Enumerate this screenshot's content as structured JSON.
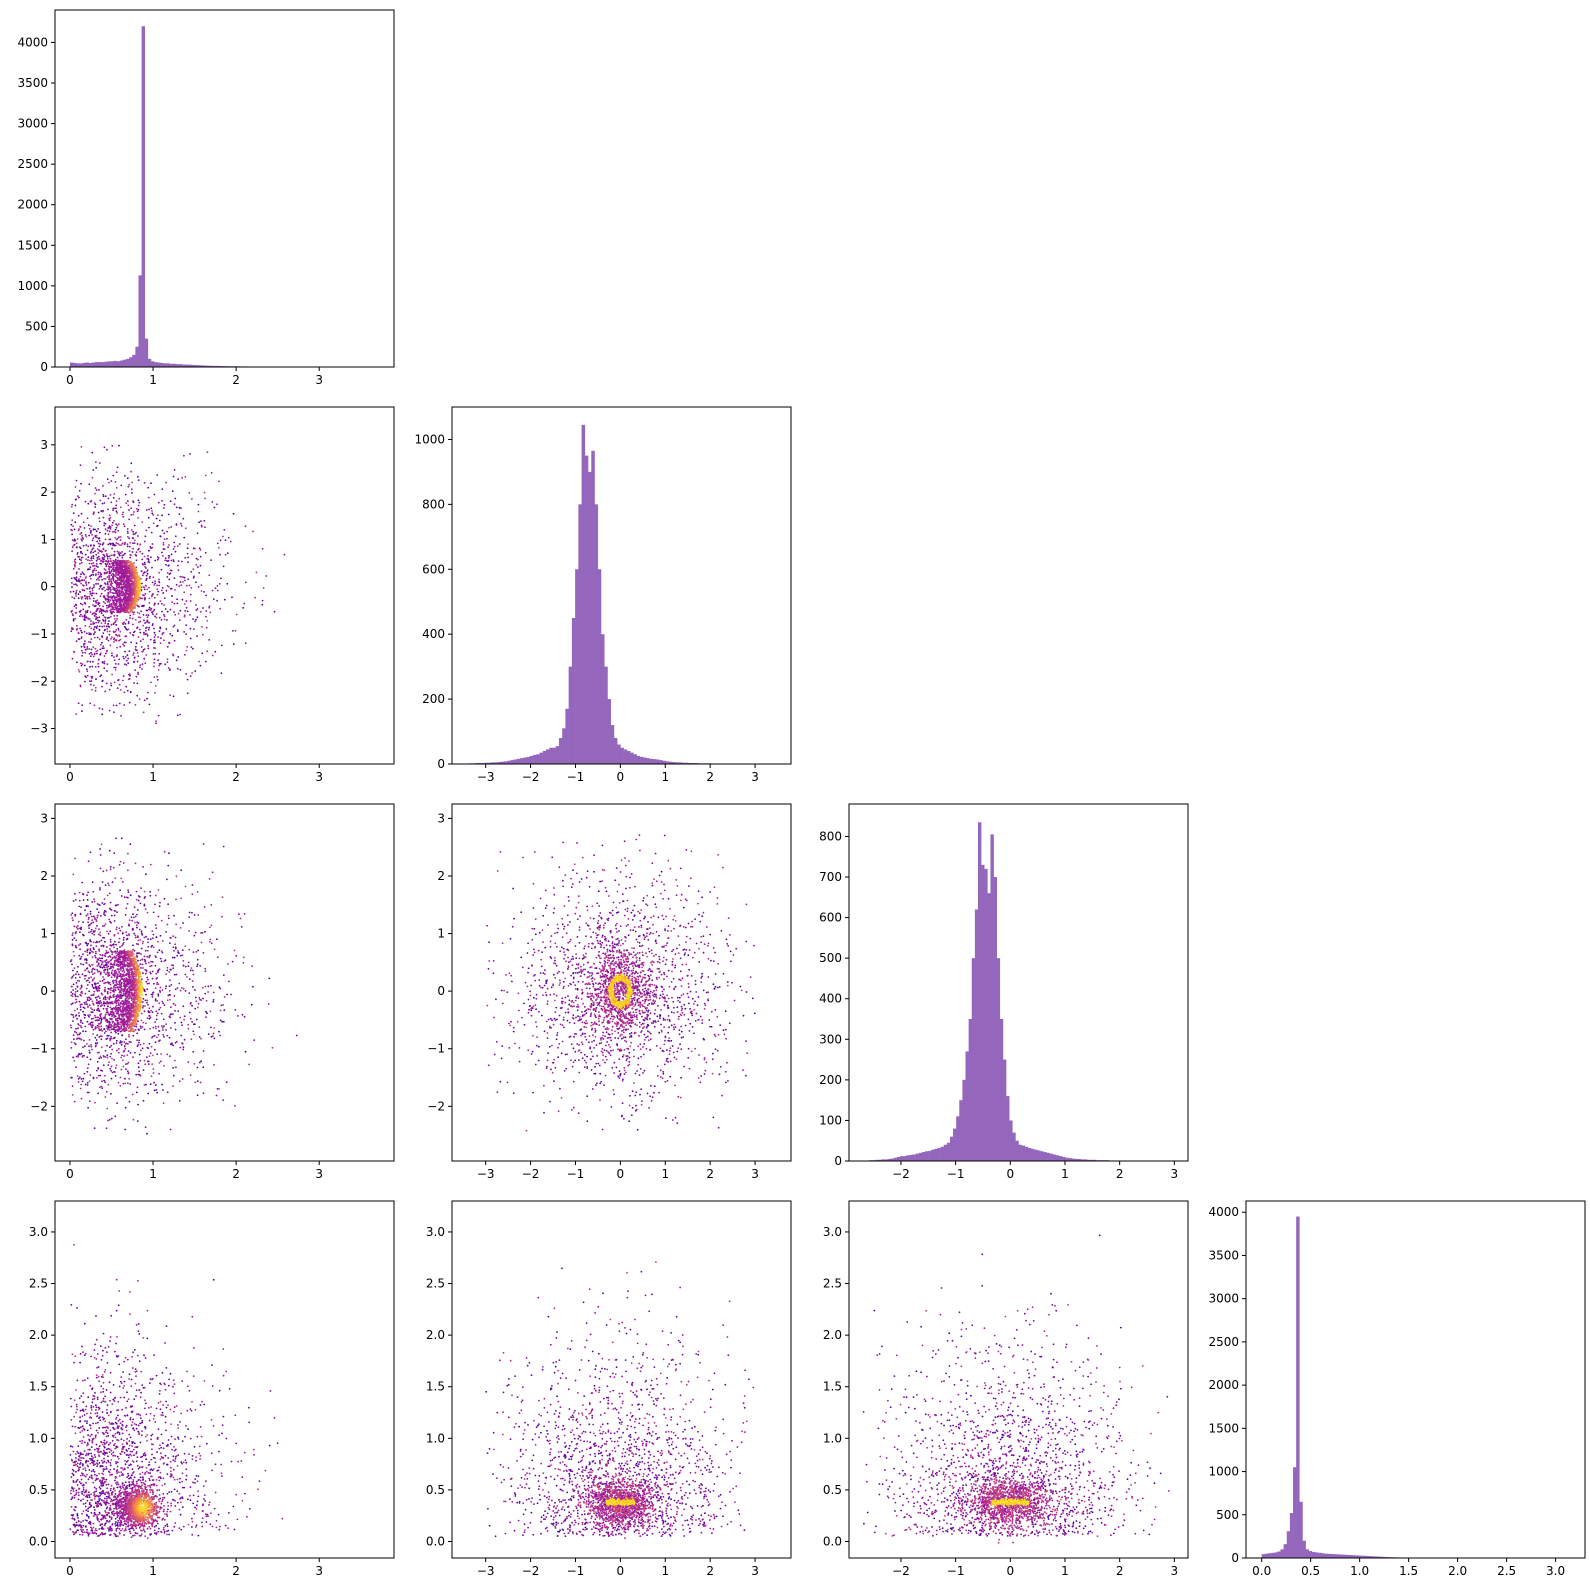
{
  "chart_data": {
    "type": "corner-plot",
    "layout": "4x4 lower-triangular pair plot: histograms on diagonal, density-colored scatter below",
    "hist_color": "#9467bd",
    "scatter_colormap": "plasma",
    "variables": [
      {
        "index": 0,
        "lim": [
          -0.18,
          3.9
        ],
        "ticks": [
          0,
          1,
          2,
          3
        ],
        "tick_labels": [
          "0",
          "1",
          "2",
          "3"
        ]
      },
      {
        "index": 1,
        "lim": [
          -3.75,
          3.8
        ],
        "ticks": [
          -3,
          -2,
          -1,
          0,
          1,
          2,
          3
        ],
        "tick_labels": [
          "−3",
          "−2",
          "−1",
          "0",
          "1",
          "2",
          "3"
        ]
      },
      {
        "index": 2,
        "lim": [
          -2.95,
          3.25
        ],
        "ticks": [
          -2,
          -1,
          0,
          1,
          2,
          3
        ],
        "tick_labels": [
          "−2",
          "−1",
          "0",
          "1",
          "2",
          "3"
        ]
      },
      {
        "index": 3,
        "lim": [
          -0.16,
          3.3
        ],
        "ticks": [
          0.0,
          0.5,
          1.0,
          1.5,
          2.0,
          2.5,
          3.0
        ],
        "tick_labels": [
          "0.0",
          "0.5",
          "1.0",
          "1.5",
          "2.0",
          "2.5",
          "3.0"
        ]
      }
    ],
    "hist_axes": [
      {
        "var": 0,
        "ylim": [
          0,
          4400
        ],
        "yticks": [
          0,
          500,
          1000,
          1500,
          2000,
          2500,
          3000,
          3500,
          4000
        ],
        "ytick_labels": [
          "0",
          "500",
          "1000",
          "1500",
          "2000",
          "2500",
          "3000",
          "3500",
          "4000"
        ]
      },
      {
        "var": 1,
        "ylim": [
          0,
          1100
        ],
        "yticks": [
          0,
          200,
          400,
          600,
          800,
          1000
        ],
        "ytick_labels": [
          "0",
          "200",
          "400",
          "600",
          "800",
          "1000"
        ]
      },
      {
        "var": 2,
        "ylim": [
          0,
          880
        ],
        "yticks": [
          0,
          100,
          200,
          300,
          400,
          500,
          600,
          700,
          800
        ],
        "ytick_labels": [
          "0",
          "100",
          "200",
          "300",
          "400",
          "500",
          "600",
          "700",
          "800"
        ]
      },
      {
        "var": 3,
        "ylim": [
          0,
          4130
        ],
        "yticks": [
          0,
          500,
          1000,
          1500,
          2000,
          2500,
          3000,
          3500,
          4000
        ],
        "ytick_labels": [
          "0",
          "500",
          "1000",
          "1500",
          "2000",
          "2500",
          "3000",
          "3500",
          "4000"
        ]
      }
    ],
    "histograms": [
      {
        "var": 0,
        "bin_edges_start": 0.0,
        "bin_width": 0.0375,
        "counts": [
          55,
          50,
          45,
          45,
          50,
          55,
          50,
          55,
          60,
          60,
          60,
          65,
          70,
          70,
          75,
          70,
          80,
          90,
          100,
          120,
          150,
          250,
          1130,
          4200,
          350,
          100,
          70,
          60,
          55,
          50,
          45,
          45,
          40,
          40,
          35,
          35,
          30,
          30,
          28,
          26,
          24,
          22,
          20,
          18,
          16,
          15,
          14,
          13,
          12,
          11,
          10,
          9,
          9,
          8,
          8,
          7,
          7,
          6,
          6,
          5,
          5,
          5,
          4,
          4,
          4,
          3,
          3,
          3,
          3,
          2,
          2,
          2,
          2,
          2,
          2,
          1,
          1,
          1,
          1,
          1,
          1,
          1,
          1,
          1,
          1,
          1,
          1,
          1,
          1,
          1,
          1,
          1,
          1,
          1,
          1,
          1,
          1,
          1,
          1,
          1
        ]
      },
      {
        "var": 1,
        "bin_edges_start": -3.6,
        "bin_width": 0.072,
        "counts": [
          1,
          1,
          1,
          2,
          2,
          3,
          3,
          3,
          4,
          4,
          5,
          5,
          6,
          7,
          8,
          10,
          12,
          14,
          16,
          18,
          20,
          22,
          25,
          28,
          30,
          35,
          40,
          45,
          50,
          50,
          55,
          80,
          110,
          170,
          300,
          450,
          600,
          800,
          1045,
          950,
          900,
          965,
          800,
          600,
          400,
          300,
          200,
          120,
          80,
          60,
          50,
          45,
          40,
          35,
          30,
          25,
          22,
          20,
          18,
          16,
          15,
          14,
          12,
          10,
          8,
          7,
          6,
          5,
          5,
          4,
          4,
          3,
          3,
          3,
          2,
          2,
          2,
          2,
          1,
          1,
          1,
          1,
          1,
          1,
          1,
          1,
          1,
          1,
          1,
          1,
          1,
          1,
          1,
          1,
          1,
          1,
          1,
          1,
          1,
          1
        ]
      },
      {
        "var": 2,
        "bin_edges_start": -2.7,
        "bin_width": 0.057,
        "counts": [
          1,
          1,
          2,
          2,
          3,
          3,
          4,
          4,
          5,
          6,
          8,
          10,
          12,
          12,
          14,
          15,
          16,
          18,
          20,
          22,
          24,
          25,
          28,
          30,
          32,
          35,
          40,
          45,
          60,
          80,
          110,
          150,
          200,
          270,
          350,
          500,
          620,
          835,
          730,
          720,
          660,
          805,
          700,
          500,
          350,
          250,
          160,
          100,
          70,
          50,
          40,
          38,
          35,
          32,
          30,
          28,
          26,
          24,
          22,
          20,
          18,
          16,
          14,
          12,
          10,
          8,
          7,
          6,
          5,
          5,
          4,
          4,
          3,
          3,
          3,
          2,
          2,
          2,
          2,
          1,
          1,
          1,
          1,
          1,
          1,
          1,
          1,
          1,
          1,
          1,
          1,
          1,
          1,
          1,
          1,
          1,
          1,
          1,
          1,
          1
        ]
      },
      {
        "var": 3,
        "bin_edges_start": 0.0,
        "bin_width": 0.032,
        "counts": [
          45,
          50,
          55,
          60,
          65,
          75,
          100,
          160,
          310,
          520,
          1050,
          3950,
          650,
          200,
          100,
          80,
          70,
          65,
          60,
          55,
          50,
          48,
          46,
          44,
          42,
          40,
          38,
          36,
          34,
          32,
          30,
          28,
          26,
          24,
          22,
          20,
          18,
          16,
          14,
          12,
          10,
          9,
          8,
          7,
          6,
          5,
          5,
          4,
          4,
          3,
          3,
          3,
          2,
          2,
          2,
          2,
          1,
          1,
          1,
          1,
          1,
          1,
          1,
          1,
          1,
          1,
          1,
          1,
          1,
          1,
          1,
          1,
          1,
          1,
          1,
          1,
          1,
          1,
          1,
          1,
          1,
          1,
          1,
          1,
          1,
          1,
          1,
          1,
          1,
          1,
          1,
          1,
          1,
          1,
          1,
          1,
          1,
          1,
          1,
          1
        ]
      }
    ],
    "scatter_panels": [
      {
        "x_var": 0,
        "y_var": 1,
        "core": {
          "shape": "crescent",
          "peak_x": 0.85,
          "inner_x": 0.55,
          "y_half_height": 0.55
        },
        "halo": {
          "x_range": [
            0.0,
            2.8
          ],
          "y_range": [
            -3.0,
            3.0
          ]
        }
      },
      {
        "x_var": 0,
        "y_var": 2,
        "core": {
          "shape": "crescent",
          "peak_x": 0.87,
          "inner_x": 0.55,
          "y_half_height": 0.7
        },
        "halo": {
          "x_range": [
            0.0,
            2.8
          ],
          "y_range": [
            -2.5,
            2.8
          ]
        }
      },
      {
        "x_var": 1,
        "y_var": 2,
        "core": {
          "shape": "ring",
          "center": [
            0.0,
            0.0
          ],
          "radius_x": 0.35,
          "radius_y": 0.4
        },
        "halo": {
          "x_range": [
            -3.0,
            3.0
          ],
          "y_range": [
            -2.5,
            2.8
          ]
        }
      },
      {
        "x_var": 0,
        "y_var": 3,
        "core": {
          "shape": "blob",
          "center": [
            0.8,
            0.33
          ],
          "radius_x": 0.22,
          "radius_y": 0.2
        },
        "halo": {
          "x_range": [
            0.0,
            2.8
          ],
          "y_range": [
            0.0,
            3.0
          ]
        }
      },
      {
        "x_var": 1,
        "y_var": 3,
        "core": {
          "shape": "band",
          "center": [
            0.0,
            0.38
          ],
          "half_width": 0.7,
          "half_height": 0.25
        },
        "halo": {
          "x_range": [
            -3.0,
            3.0
          ],
          "y_range": [
            0.0,
            3.0
          ]
        }
      },
      {
        "x_var": 2,
        "y_var": 3,
        "core": {
          "shape": "band",
          "center": [
            0.0,
            0.38
          ],
          "half_width": 0.75,
          "half_height": 0.25
        },
        "halo": {
          "x_range": [
            -2.7,
            2.9
          ],
          "y_range": [
            0.0,
            3.0
          ]
        }
      }
    ]
  }
}
